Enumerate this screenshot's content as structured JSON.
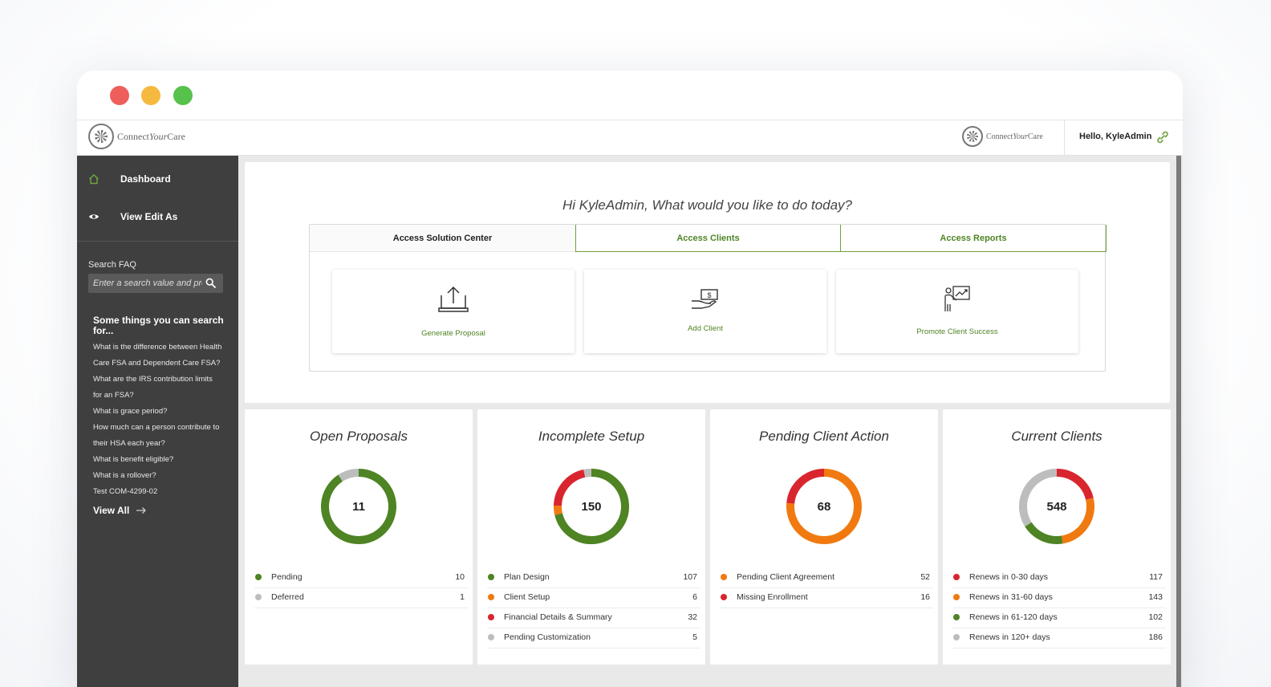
{
  "colors": {
    "green": "#4e8424",
    "orange": "#f07a10",
    "red": "#d9252e",
    "gray": "#bdbdbd",
    "sidebar": "#3f3f3f"
  },
  "header": {
    "logo_left": {
      "word1": "Connect",
      "word2": "Your",
      "word3": "Care"
    },
    "logo_right": {
      "word1": "Connect",
      "word2": "Your",
      "word3": "Care"
    },
    "greeting": "Hello, KyleAdmin",
    "icon": "link-icon"
  },
  "sidebar": {
    "items": [
      {
        "label": "Dashboard",
        "icon": "home-icon"
      },
      {
        "label": "View Edit As",
        "icon": "eye-icon"
      }
    ],
    "faq_label": "Search FAQ",
    "faq_placeholder": "Enter a search value and press enter",
    "faq_heading": "Some things you can search for...",
    "faq_items": [
      "What is the difference between Health",
      "Care FSA and Dependent Care FSA?",
      "What are the IRS contribution limits",
      "for an FSA?",
      "What is grace period?",
      "How much can a person contribute to",
      "their HSA each year?",
      "What is benefit eligible?",
      "What is a rollover?",
      "Test COM-4299-02"
    ],
    "view_all": "View All"
  },
  "hero": {
    "greeting": "Hi KyleAdmin, What would you like to do today?",
    "tabs": [
      "Access Solution Center",
      "Access Clients",
      "Access Reports"
    ],
    "actions": [
      {
        "label": "Generate Proposal",
        "icon": "upload-laptop-icon"
      },
      {
        "label": "Add Client",
        "icon": "hand-money-icon"
      },
      {
        "label": "Promote Client Success",
        "icon": "presenter-chart-icon"
      }
    ]
  },
  "cards": [
    {
      "title": "Open Proposals",
      "total": "11",
      "items": [
        {
          "name": "Pending",
          "value": 10,
          "color": "#4e8424"
        },
        {
          "name": "Deferred",
          "value": 1,
          "color": "#bdbdbd"
        }
      ]
    },
    {
      "title": "Incomplete Setup",
      "total": "150",
      "items": [
        {
          "name": "Plan Design",
          "value": 107,
          "color": "#4e8424"
        },
        {
          "name": "Client Setup",
          "value": 6,
          "color": "#f07a10"
        },
        {
          "name": "Financial Details & Summary",
          "value": 32,
          "color": "#d9252e"
        },
        {
          "name": "Pending Customization",
          "value": 5,
          "color": "#bdbdbd"
        }
      ]
    },
    {
      "title": "Pending Client Action",
      "total": "68",
      "items": [
        {
          "name": "Pending Client Agreement",
          "value": 52,
          "color": "#f07a10"
        },
        {
          "name": "Missing Enrollment",
          "value": 16,
          "color": "#d9252e"
        }
      ]
    },
    {
      "title": "Current Clients",
      "total": "548",
      "items": [
        {
          "name": "Renews in 0-30 days",
          "value": 117,
          "color": "#d9252e"
        },
        {
          "name": "Renews in 31-60 days",
          "value": 143,
          "color": "#f07a10"
        },
        {
          "name": "Renews in 61-120 days",
          "value": 102,
          "color": "#4e8424"
        },
        {
          "name": "Renews in 120+ days",
          "value": 186,
          "color": "#bdbdbd"
        }
      ]
    }
  ]
}
